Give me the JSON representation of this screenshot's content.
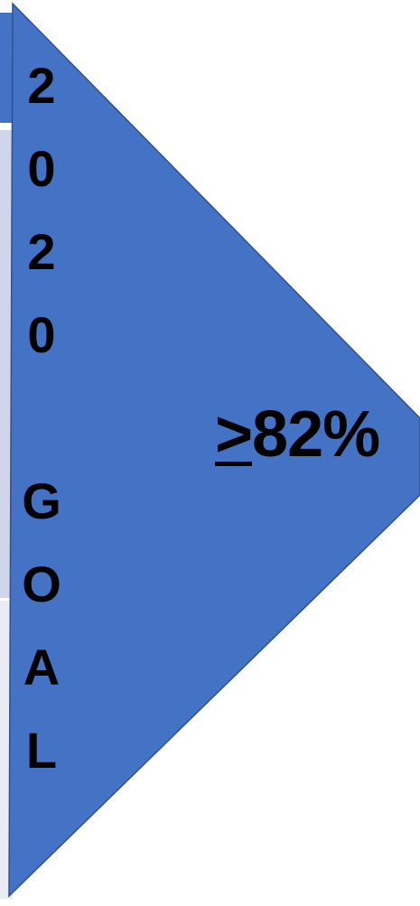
{
  "diagram": {
    "fill_color": "#4472c4",
    "stroke_color": "#2f528f",
    "label_color": "#000000",
    "goal_label": [
      "2",
      "0",
      "2",
      "0",
      "",
      "G",
      "O",
      "A",
      "L"
    ],
    "target": {
      "symbol": ">",
      "value": "82%"
    },
    "side_strip_colors": [
      "#4472c4",
      "#cfd5ea",
      "#e9ebf5"
    ]
  }
}
